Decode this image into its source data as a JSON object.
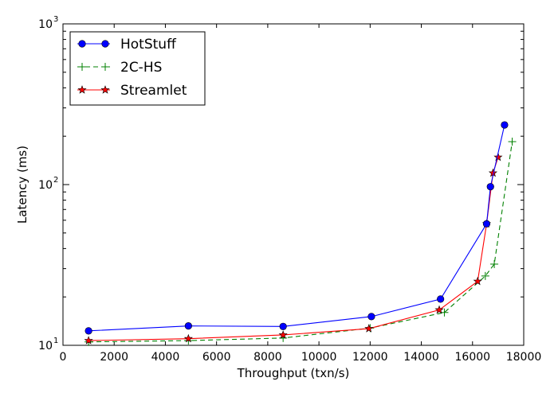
{
  "chart_data": {
    "type": "line",
    "title": "",
    "xlabel": "Throughput (txn/s)",
    "ylabel": "Latency (ms)",
    "xlim": [
      0,
      18000
    ],
    "ylim": [
      10,
      1000
    ],
    "yscale": "log",
    "xticks": [
      "0",
      "2000",
      "4000",
      "6000",
      "8000",
      "10000",
      "12000",
      "14000",
      "16000",
      "18000"
    ],
    "yticks": [
      {
        "base": "10",
        "exp": "1"
      },
      {
        "base": "10",
        "exp": "2"
      },
      {
        "base": "10",
        "exp": "3"
      }
    ],
    "legend_position": "top-left",
    "series": [
      {
        "name": "HotStuff",
        "color": "#0000ff",
        "marker": "circle",
        "line": "solid",
        "x": [
          1000,
          4900,
          8600,
          12050,
          14750,
          16550,
          16700,
          17250
        ],
        "y": [
          12.3,
          13.2,
          13.1,
          15.1,
          19.4,
          57,
          97,
          235
        ]
      },
      {
        "name": "2C-HS",
        "color": "#008000",
        "marker": "plus",
        "line": "dashed",
        "x": [
          1000,
          4900,
          8600,
          12000,
          14900,
          16500,
          16850,
          17550
        ],
        "y": [
          10.5,
          10.7,
          11.1,
          12.8,
          16.0,
          27,
          32,
          185
        ]
      },
      {
        "name": "Streamlet",
        "color": "#ff0000",
        "marker": "star",
        "line": "solid",
        "x": [
          1000,
          4900,
          8600,
          11950,
          14700,
          16200,
          16550,
          16800,
          17000
        ],
        "y": [
          10.7,
          11.0,
          11.6,
          12.7,
          16.6,
          25,
          57,
          118,
          148
        ]
      }
    ]
  }
}
